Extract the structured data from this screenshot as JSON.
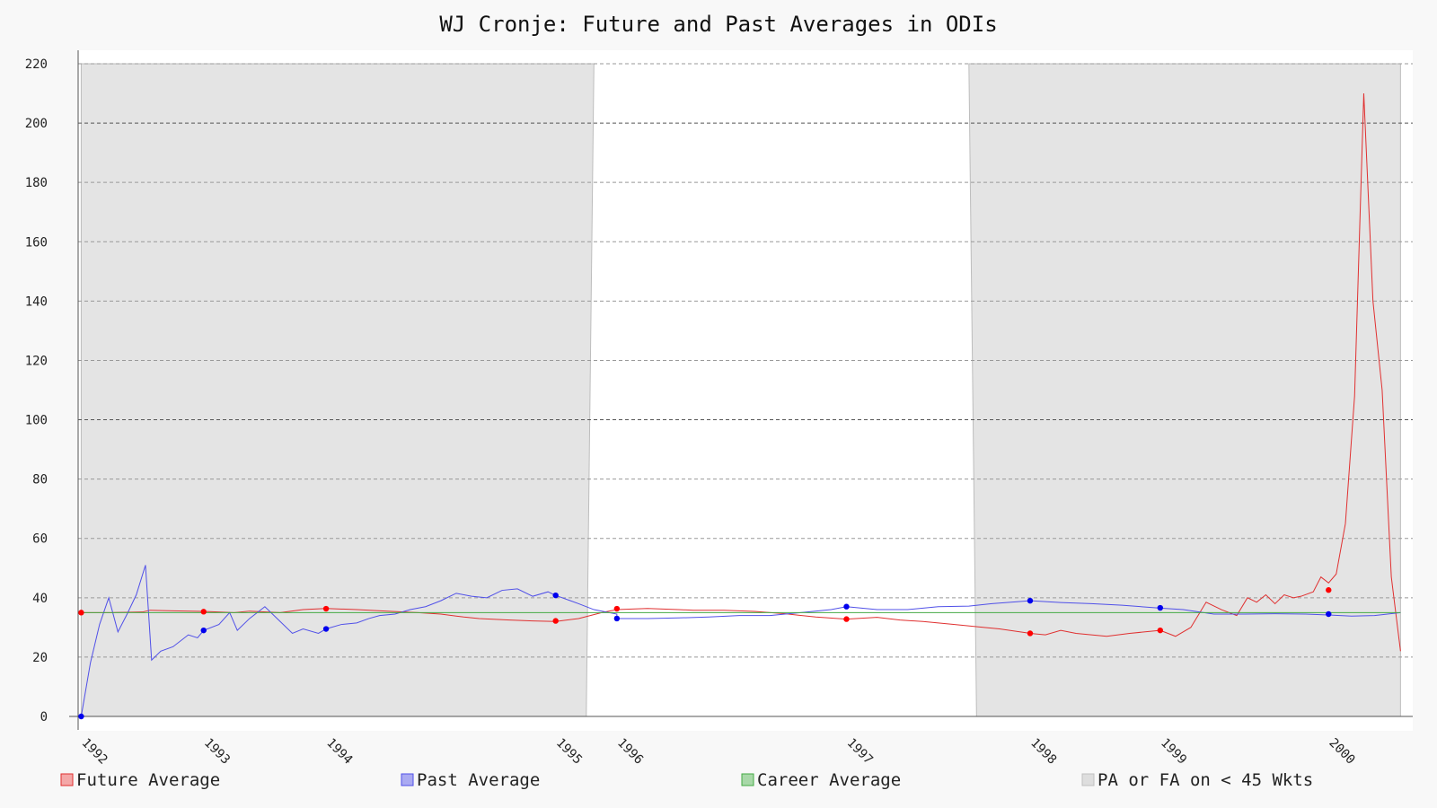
{
  "chart_data": {
    "type": "line",
    "title": "WJ Cronje: Future and Past Averages in ODIs",
    "xlabel": "",
    "ylabel": "",
    "x_range": [
      1991.98,
      2000.7
    ],
    "ylim": [
      0,
      220
    ],
    "y_ticks": [
      0,
      20,
      40,
      60,
      80,
      100,
      120,
      140,
      160,
      180,
      200,
      220
    ],
    "x_ticks": [
      {
        "label": "1992",
        "x": 1992.0
      },
      {
        "label": "1993",
        "x": 1992.8
      },
      {
        "label": "1994",
        "x": 1993.6
      },
      {
        "label": "1995",
        "x": 1995.1
      },
      {
        "label": "1996",
        "x": 1995.5
      },
      {
        "label": "1997",
        "x": 1997.0
      },
      {
        "label": "1998",
        "x": 1998.2
      },
      {
        "label": "1999",
        "x": 1999.05
      },
      {
        "label": "2000",
        "x": 2000.15
      }
    ],
    "grid": true,
    "legend_position": "bottom",
    "series": [
      {
        "name": "Future Average",
        "color": "#e03030",
        "points": [
          [
            1992.0,
            35
          ],
          [
            1992.2,
            35
          ],
          [
            1992.4,
            35.2
          ],
          [
            1992.45,
            35.8
          ],
          [
            1992.6,
            35.6
          ],
          [
            1992.8,
            35.4
          ],
          [
            1993.0,
            35
          ],
          [
            1993.1,
            35.5
          ],
          [
            1993.3,
            35
          ],
          [
            1993.45,
            36
          ],
          [
            1993.6,
            36.4
          ],
          [
            1993.8,
            36
          ],
          [
            1994.0,
            35.5
          ],
          [
            1994.2,
            35
          ],
          [
            1994.35,
            34.5
          ],
          [
            1994.5,
            33.5
          ],
          [
            1994.6,
            33
          ],
          [
            1994.8,
            32.5
          ],
          [
            1994.95,
            32.2
          ],
          [
            1995.1,
            32
          ],
          [
            1995.25,
            33
          ],
          [
            1995.4,
            35
          ],
          [
            1995.5,
            36
          ],
          [
            1995.7,
            36.4
          ],
          [
            1995.9,
            36
          ],
          [
            1996.0,
            35.8
          ],
          [
            1996.2,
            35.8
          ],
          [
            1996.4,
            35.4
          ],
          [
            1996.6,
            34.6
          ],
          [
            1996.8,
            33.5
          ],
          [
            1997.0,
            32.8
          ],
          [
            1997.2,
            33.4
          ],
          [
            1997.35,
            32.5
          ],
          [
            1997.5,
            32
          ],
          [
            1997.7,
            31
          ],
          [
            1997.9,
            30
          ],
          [
            1998.0,
            29.5
          ],
          [
            1998.2,
            28
          ],
          [
            1998.3,
            27.5
          ],
          [
            1998.4,
            29
          ],
          [
            1998.5,
            28
          ],
          [
            1998.7,
            27
          ],
          [
            1998.85,
            28
          ],
          [
            1999.05,
            29
          ],
          [
            1999.15,
            27
          ],
          [
            1999.25,
            30
          ],
          [
            1999.35,
            38.5
          ],
          [
            1999.45,
            36
          ],
          [
            1999.55,
            34
          ],
          [
            1999.62,
            40
          ],
          [
            1999.68,
            38.5
          ],
          [
            1999.74,
            41
          ],
          [
            1999.8,
            38
          ],
          [
            1999.86,
            41
          ],
          [
            1999.92,
            40
          ],
          [
            1999.97,
            40.5
          ],
          [
            2000.05,
            42
          ],
          [
            2000.1,
            47
          ],
          [
            2000.15,
            45
          ],
          [
            2000.2,
            48
          ],
          [
            2000.26,
            65
          ],
          [
            2000.32,
            108
          ],
          [
            2000.38,
            210
          ],
          [
            2000.44,
            140
          ],
          [
            2000.5,
            110
          ],
          [
            2000.56,
            47
          ],
          [
            2000.62,
            22
          ]
        ]
      },
      {
        "name": "Past Average",
        "color": "#5050e8",
        "points": [
          [
            1992.0,
            0
          ],
          [
            1992.06,
            18
          ],
          [
            1992.12,
            31
          ],
          [
            1992.18,
            40
          ],
          [
            1992.24,
            28.5
          ],
          [
            1992.3,
            34.5
          ],
          [
            1992.36,
            41
          ],
          [
            1992.42,
            51
          ],
          [
            1992.46,
            19
          ],
          [
            1992.52,
            22
          ],
          [
            1992.6,
            23.5
          ],
          [
            1992.7,
            27.5
          ],
          [
            1992.76,
            26.5
          ],
          [
            1992.8,
            29
          ],
          [
            1992.9,
            31
          ],
          [
            1992.97,
            35
          ],
          [
            1993.02,
            29
          ],
          [
            1993.1,
            33
          ],
          [
            1993.2,
            37
          ],
          [
            1993.3,
            32
          ],
          [
            1993.38,
            28
          ],
          [
            1993.45,
            29.5
          ],
          [
            1993.55,
            28
          ],
          [
            1993.6,
            29.5
          ],
          [
            1993.7,
            31
          ],
          [
            1993.8,
            31.5
          ],
          [
            1993.88,
            33
          ],
          [
            1993.95,
            34
          ],
          [
            1994.05,
            34.5
          ],
          [
            1994.15,
            36
          ],
          [
            1994.25,
            37
          ],
          [
            1994.35,
            39
          ],
          [
            1994.45,
            41.5
          ],
          [
            1994.55,
            40.5
          ],
          [
            1994.65,
            40
          ],
          [
            1994.75,
            42.5
          ],
          [
            1994.85,
            43
          ],
          [
            1994.95,
            40.5
          ],
          [
            1995.05,
            42
          ],
          [
            1995.1,
            40.8
          ],
          [
            1995.25,
            38
          ],
          [
            1995.35,
            36
          ],
          [
            1995.5,
            34.5
          ],
          [
            1995.5,
            33
          ],
          [
            1995.7,
            33
          ],
          [
            1995.9,
            33.2
          ],
          [
            1996.1,
            33.5
          ],
          [
            1996.3,
            34
          ],
          [
            1996.5,
            34
          ],
          [
            1996.7,
            35
          ],
          [
            1996.9,
            36
          ],
          [
            1997.0,
            37
          ],
          [
            1997.2,
            36
          ],
          [
            1997.4,
            36
          ],
          [
            1997.6,
            37
          ],
          [
            1997.8,
            37.2
          ],
          [
            1997.95,
            38
          ],
          [
            1998.2,
            39
          ],
          [
            1998.4,
            38.4
          ],
          [
            1998.6,
            38
          ],
          [
            1998.8,
            37.5
          ],
          [
            1999.05,
            36.5
          ],
          [
            1999.2,
            36
          ],
          [
            1999.4,
            34.5
          ],
          [
            1999.6,
            34.5
          ],
          [
            1999.8,
            34.6
          ],
          [
            2000.0,
            34.5
          ],
          [
            2000.15,
            34.2
          ],
          [
            2000.3,
            33.8
          ],
          [
            2000.45,
            34
          ],
          [
            2000.62,
            35
          ]
        ]
      },
      {
        "name": "Career Average",
        "color": "#44aa44",
        "points": [
          [
            1992.0,
            35
          ],
          [
            2000.62,
            35
          ]
        ]
      },
      {
        "name": "PA or FA on < 45 Wkts",
        "color": "#c8c8c8"
      }
    ],
    "future_markers": [
      [
        1992.0,
        35
      ],
      [
        1992.8,
        35.3
      ],
      [
        1993.6,
        36.3
      ],
      [
        1995.1,
        32.2
      ],
      [
        1995.5,
        36.3
      ],
      [
        1997.0,
        32.8
      ],
      [
        1998.2,
        28
      ],
      [
        1999.05,
        29
      ],
      [
        2000.15,
        42.6
      ]
    ],
    "past_markers": [
      [
        1992.0,
        0
      ],
      [
        1992.8,
        29
      ],
      [
        1993.6,
        29.5
      ],
      [
        1995.1,
        40.8
      ],
      [
        1995.5,
        33
      ],
      [
        1997.0,
        37
      ],
      [
        1998.2,
        39
      ],
      [
        1999.05,
        36.6
      ],
      [
        2000.15,
        34.5
      ]
    ],
    "shaded_regions": [
      {
        "from": 1992.0,
        "to": 1995.3,
        "top_edge_start": 1995.35
      },
      {
        "from": 1997.85,
        "to": 2000.62,
        "top_edge_start": 1997.8
      }
    ]
  }
}
